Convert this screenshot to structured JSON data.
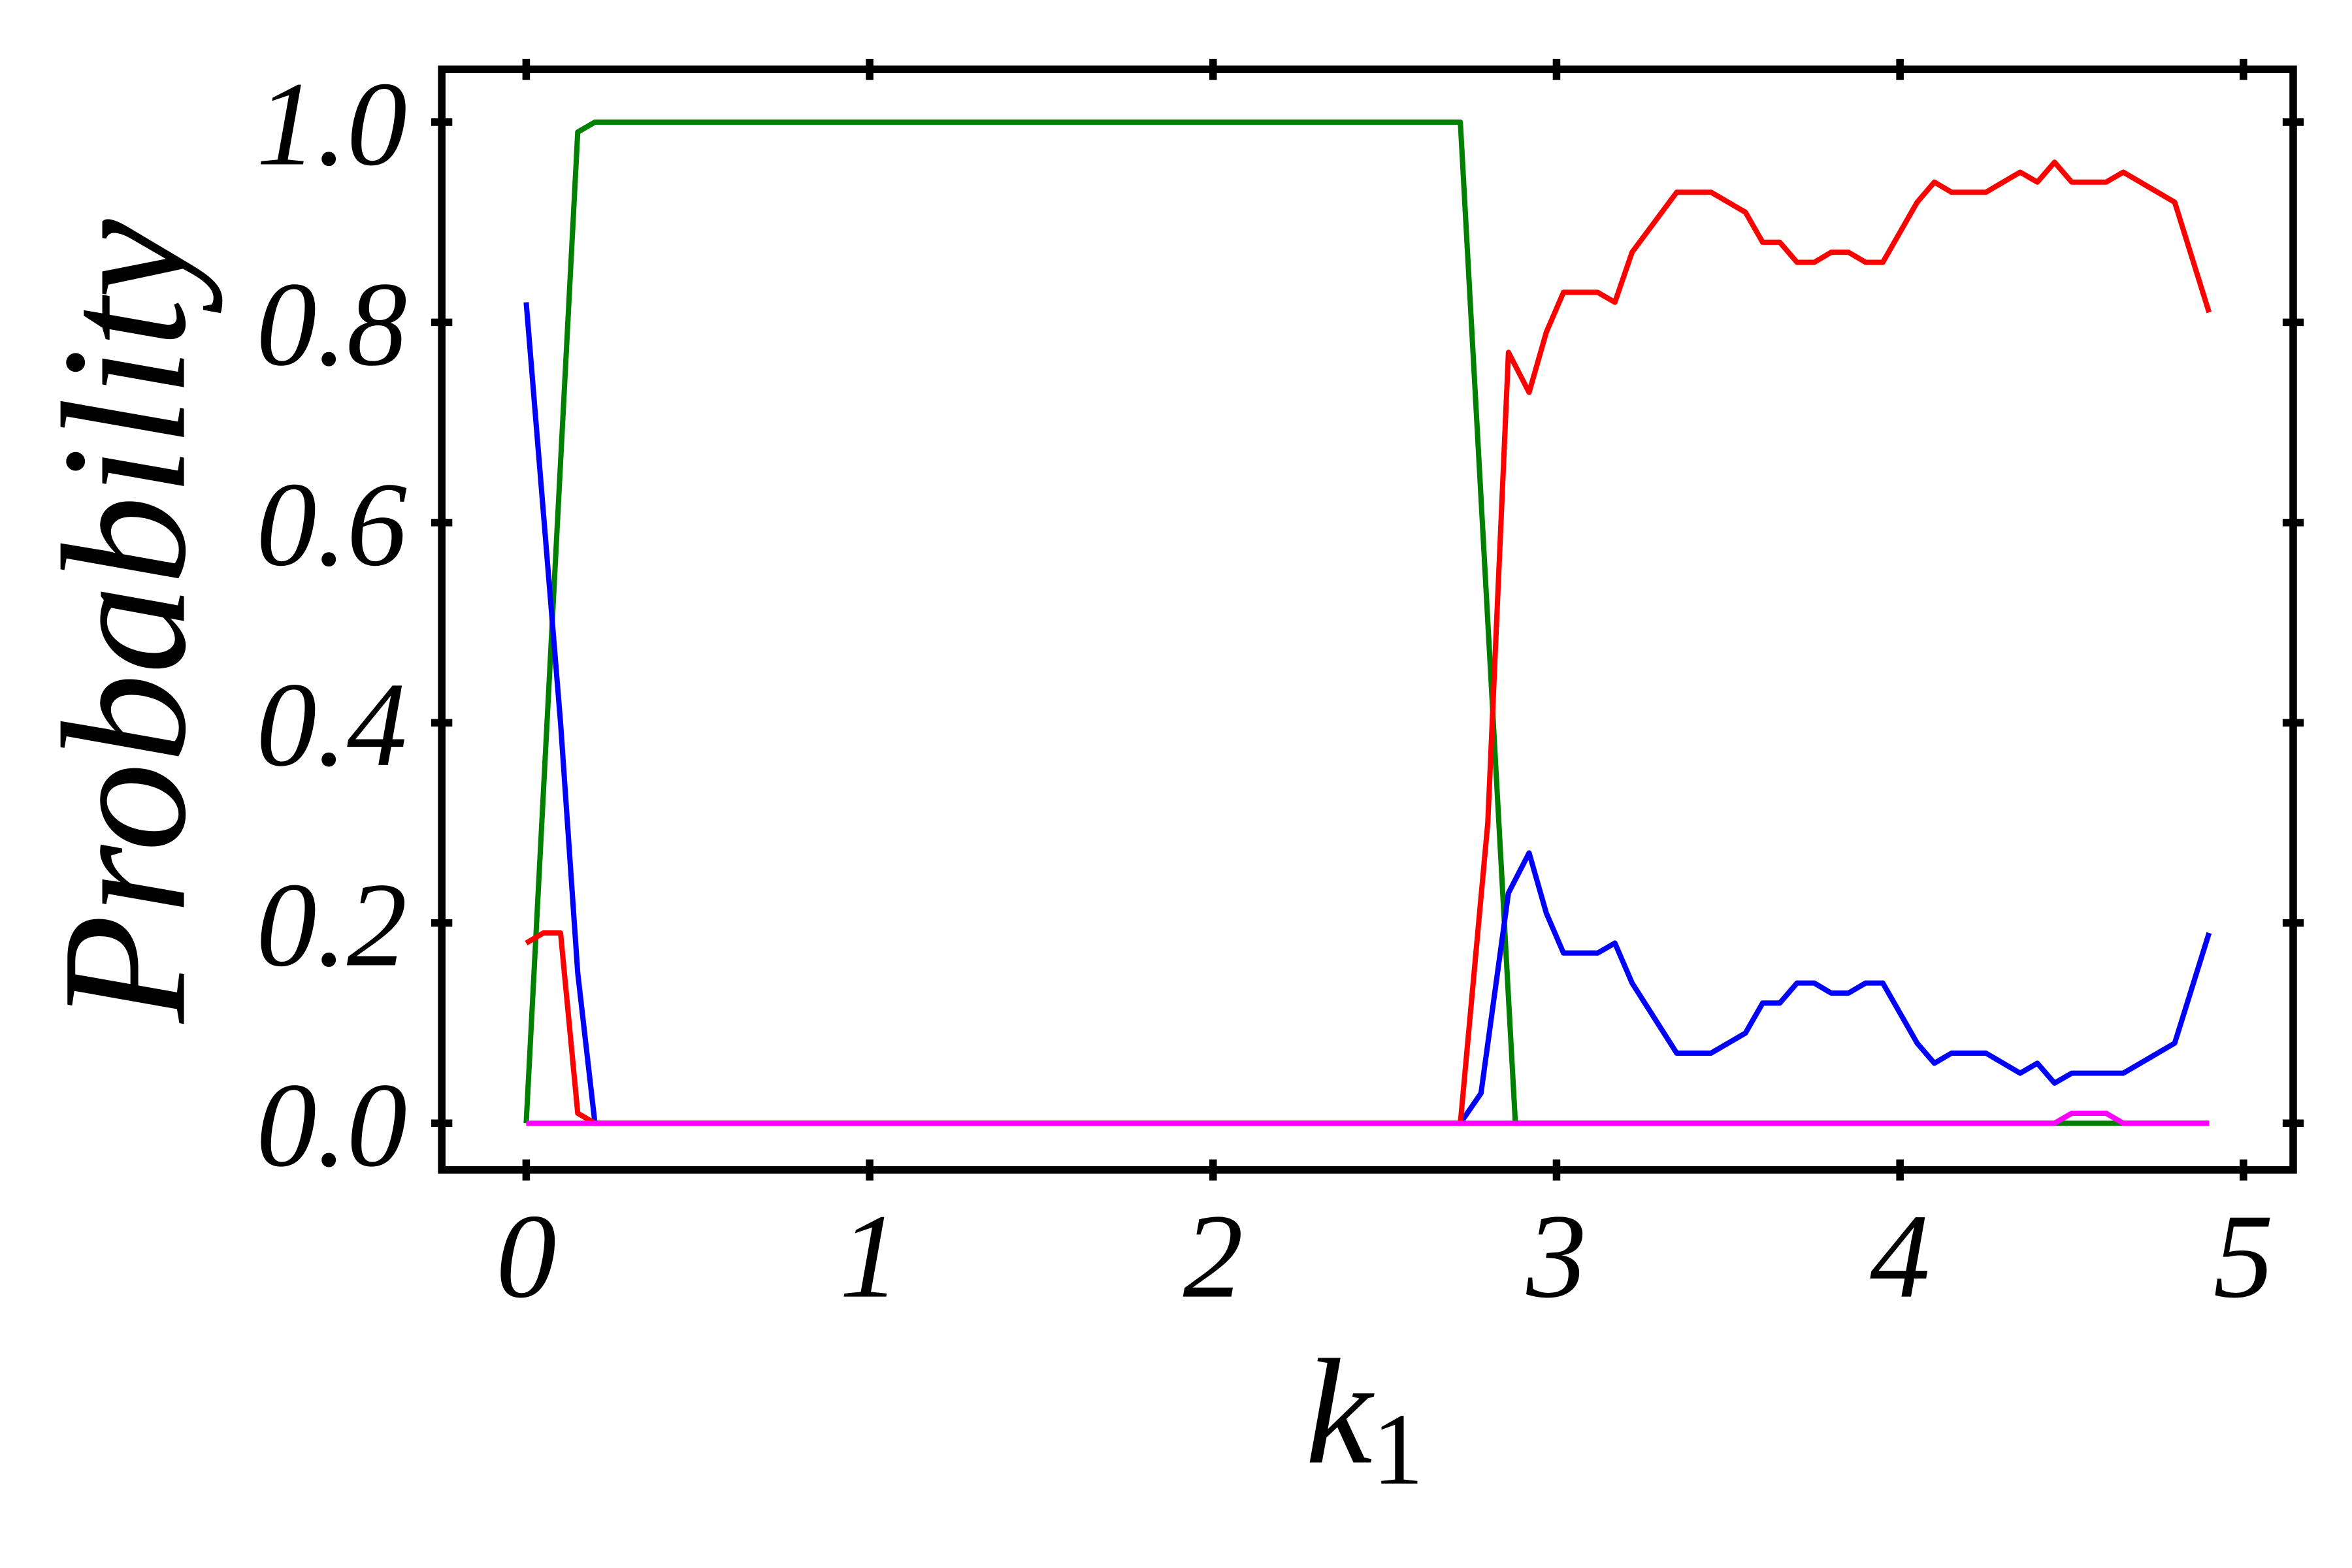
{
  "chart_data": {
    "type": "line",
    "title": "",
    "xlabel": "k1",
    "xlabel_base": "k",
    "xlabel_sub": "1",
    "ylabel": "Probability",
    "xlim": [
      -0.25,
      5.15
    ],
    "ylim": [
      -0.047,
      1.05
    ],
    "xticks": [
      0,
      1,
      2,
      3,
      4,
      5
    ],
    "xtick_labels": [
      "0",
      "1",
      "2",
      "3",
      "4",
      "5"
    ],
    "yticks": [
      0.0,
      0.2,
      0.4,
      0.6,
      0.8,
      1.0
    ],
    "ytick_labels": [
      "0.0",
      "0.2",
      "0.4",
      "0.6",
      "0.8",
      "1.0"
    ],
    "grid": false,
    "legend": "none",
    "series": [
      {
        "name": "green",
        "color": "#008000",
        "x": [
          0,
          0.15,
          0.2,
          2.72,
          2.88,
          4.45,
          4.5,
          4.6,
          4.65,
          4.9
        ],
        "y": [
          0,
          0.99,
          1.0,
          1.0,
          0,
          0,
          0,
          0,
          0,
          0
        ]
      },
      {
        "name": "blue",
        "color": "#0000ff",
        "x": [
          0,
          0.1,
          0.15,
          0.2,
          2.72,
          2.78,
          2.86,
          2.92,
          2.97,
          3.02,
          3.12,
          3.17,
          3.22,
          3.35,
          3.45,
          3.55,
          3.6,
          3.65,
          3.7,
          3.75,
          3.8,
          3.85,
          3.9,
          3.95,
          4.05,
          4.1,
          4.15,
          4.25,
          4.35,
          4.4,
          4.45,
          4.5,
          4.65,
          4.8,
          4.9
        ],
        "y": [
          0.82,
          0.4,
          0.15,
          0,
          0,
          0.03,
          0.23,
          0.27,
          0.21,
          0.17,
          0.17,
          0.18,
          0.14,
          0.07,
          0.07,
          0.09,
          0.12,
          0.12,
          0.14,
          0.14,
          0.13,
          0.13,
          0.14,
          0.14,
          0.08,
          0.06,
          0.07,
          0.07,
          0.05,
          0.06,
          0.04,
          0.05,
          0.05,
          0.08,
          0.19
        ]
      },
      {
        "name": "red",
        "color": "#ff0000",
        "x": [
          0,
          0.05,
          0.1,
          0.15,
          0.2,
          2.72,
          2.8,
          2.86,
          2.92,
          2.97,
          3.02,
          3.12,
          3.17,
          3.22,
          3.35,
          3.45,
          3.55,
          3.6,
          3.65,
          3.7,
          3.75,
          3.8,
          3.85,
          3.9,
          3.95,
          4.05,
          4.1,
          4.15,
          4.25,
          4.35,
          4.4,
          4.45,
          4.5,
          4.6,
          4.65,
          4.8,
          4.9
        ],
        "y": [
          0.18,
          0.19,
          0.19,
          0.01,
          0,
          0,
          0.3,
          0.77,
          0.73,
          0.79,
          0.83,
          0.83,
          0.82,
          0.87,
          0.93,
          0.93,
          0.91,
          0.88,
          0.88,
          0.86,
          0.86,
          0.87,
          0.87,
          0.86,
          0.86,
          0.92,
          0.94,
          0.93,
          0.93,
          0.95,
          0.94,
          0.96,
          0.94,
          0.94,
          0.95,
          0.92,
          0.81
        ]
      },
      {
        "name": "magenta",
        "color": "#ff00ff",
        "x": [
          0,
          4.45,
          4.5,
          4.6,
          4.65,
          4.9
        ],
        "y": [
          0,
          0,
          0.01,
          0.01,
          0,
          0
        ]
      }
    ]
  }
}
